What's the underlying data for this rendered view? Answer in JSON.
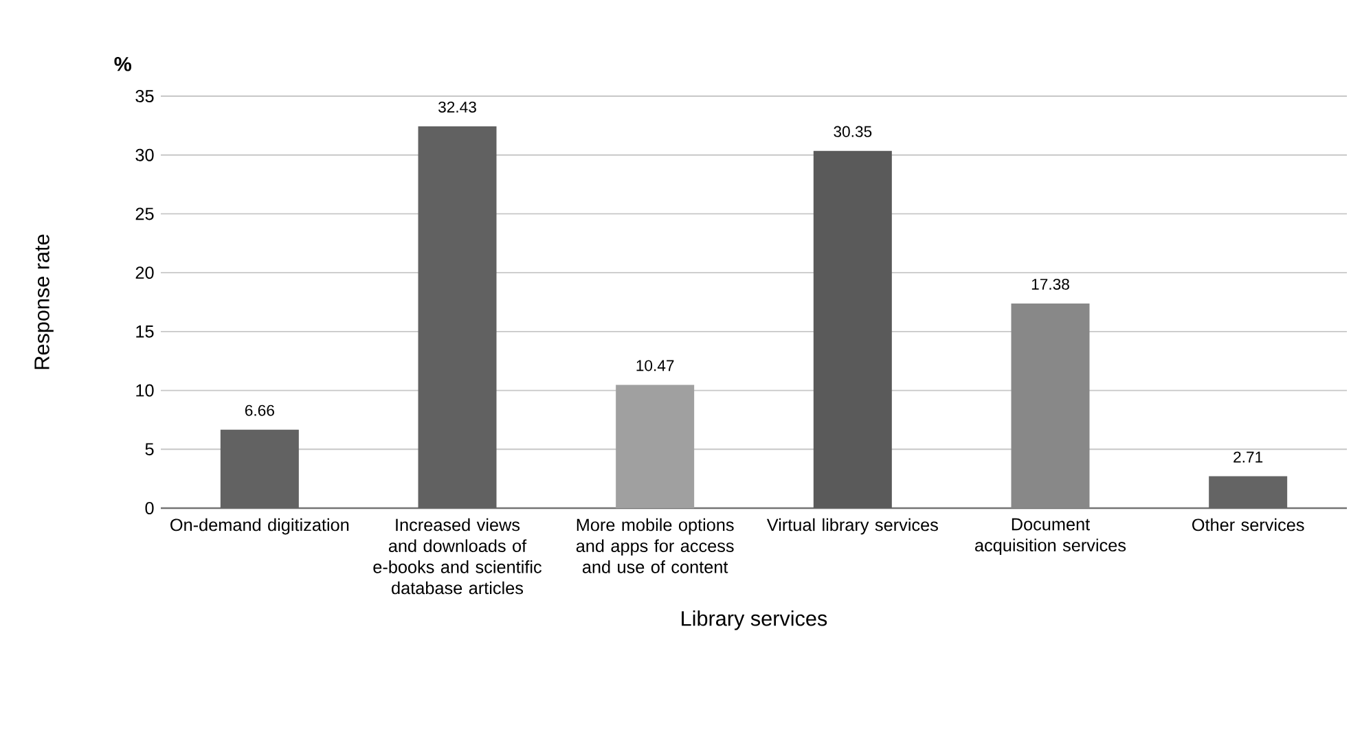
{
  "chart_data": {
    "type": "bar",
    "xlabel": "Library services",
    "ylabel": "Response rate",
    "annotations": [
      "%"
    ],
    "categories": [
      "On-demand digitization",
      "Increased views and downloads of e-books and scientific database articles",
      "More mobile options and apps for access and use of content",
      "Virtual library services",
      "Document acquisition services",
      "Other services"
    ],
    "values": [
      6.66,
      32.43,
      10.47,
      30.35,
      17.38,
      2.71
    ],
    "colors": [
      "#626262",
      "#616161",
      "#a0a0a0",
      "#5a5a5a",
      "#888888",
      "#646464"
    ],
    "ylim": [
      0,
      35
    ],
    "yticks": [
      0,
      5,
      10,
      15,
      20,
      25,
      30,
      35
    ],
    "grid": "y",
    "data_labels": true
  }
}
